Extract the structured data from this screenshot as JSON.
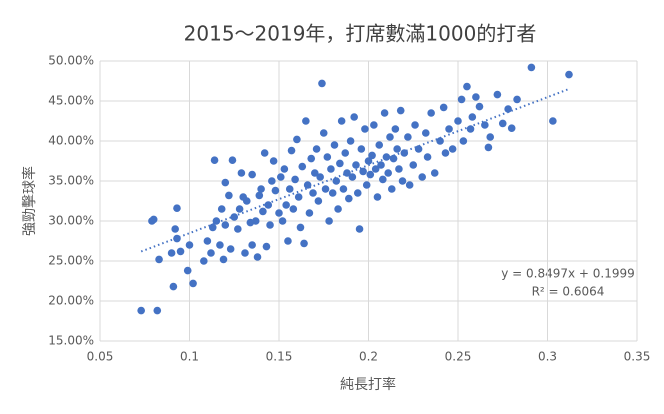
{
  "chart_data": {
    "type": "scatter",
    "title": "2015～2019年，打席數滿1000的打者",
    "x_label": "純長打率",
    "y_label": "強勁擊球率",
    "color": "#4472c4",
    "grid": true,
    "xlim": [
      0.05,
      0.35
    ],
    "xticks": [
      0.05,
      0.1,
      0.15,
      0.2,
      0.25,
      0.3,
      0.35
    ],
    "ylim": [
      15,
      50
    ],
    "yticks": [
      {
        "value": 15,
        "label": "15.00%"
      },
      {
        "value": 20,
        "label": "20.00%"
      },
      {
        "value": 25,
        "label": "25.00%"
      },
      {
        "value": 30,
        "label": "30.00%"
      },
      {
        "value": 35,
        "label": "35.00%"
      },
      {
        "value": 40,
        "label": "40.00%"
      },
      {
        "value": 45,
        "label": "45.00%"
      },
      {
        "value": 50,
        "label": "50.00%"
      }
    ],
    "trendline": {
      "x": [
        0.073,
        0.312
      ],
      "values": [
        26.19,
        46.5
      ],
      "color": "#4472c4"
    },
    "annotations": [
      "y = 0.8497x + 0.1999",
      "R² = 0.6064"
    ],
    "x": [
      0.073,
      0.082,
      0.079,
      0.08,
      0.083,
      0.09,
      0.091,
      0.092,
      0.093,
      0.093,
      0.095,
      0.099,
      0.1,
      0.102,
      0.108,
      0.11,
      0.112,
      0.113,
      0.114,
      0.115,
      0.117,
      0.118,
      0.119,
      0.12,
      0.12,
      0.122,
      0.123,
      0.124,
      0.125,
      0.127,
      0.128,
      0.129,
      0.13,
      0.131,
      0.132,
      0.134,
      0.135,
      0.135,
      0.137,
      0.138,
      0.139,
      0.14,
      0.141,
      0.142,
      0.143,
      0.144,
      0.145,
      0.146,
      0.147,
      0.148,
      0.15,
      0.151,
      0.152,
      0.153,
      0.154,
      0.155,
      0.156,
      0.157,
      0.158,
      0.159,
      0.16,
      0.161,
      0.162,
      0.163,
      0.164,
      0.165,
      0.166,
      0.167,
      0.168,
      0.169,
      0.17,
      0.171,
      0.172,
      0.173,
      0.174,
      0.175,
      0.176,
      0.177,
      0.178,
      0.179,
      0.18,
      0.181,
      0.182,
      0.183,
      0.184,
      0.185,
      0.186,
      0.187,
      0.188,
      0.189,
      0.19,
      0.191,
      0.192,
      0.193,
      0.194,
      0.195,
      0.196,
      0.197,
      0.198,
      0.199,
      0.2,
      0.201,
      0.202,
      0.203,
      0.204,
      0.205,
      0.206,
      0.207,
      0.208,
      0.209,
      0.21,
      0.211,
      0.212,
      0.213,
      0.214,
      0.215,
      0.216,
      0.217,
      0.218,
      0.219,
      0.22,
      0.222,
      0.223,
      0.225,
      0.226,
      0.228,
      0.23,
      0.232,
      0.233,
      0.235,
      0.237,
      0.24,
      0.242,
      0.243,
      0.245,
      0.247,
      0.25,
      0.252,
      0.253,
      0.255,
      0.257,
      0.258,
      0.26,
      0.262,
      0.265,
      0.267,
      0.268,
      0.272,
      0.275,
      0.278,
      0.28,
      0.283,
      0.291,
      0.303,
      0.312
    ],
    "values": [
      18.8,
      18.8,
      30,
      30.2,
      25.2,
      26,
      21.8,
      29,
      27.8,
      31.6,
      26.2,
      23.8,
      27,
      22.2,
      25,
      27.5,
      26,
      29.2,
      37.6,
      30,
      27,
      31.5,
      25.2,
      29.5,
      34.8,
      33.2,
      26.5,
      37.6,
      30.5,
      29,
      31.5,
      36,
      33,
      26,
      32.5,
      29.8,
      27,
      35.8,
      30,
      25.5,
      33.2,
      34,
      31.2,
      38.5,
      26.8,
      32,
      29.5,
      35,
      37.5,
      33.8,
      31,
      35.5,
      30,
      36.5,
      32,
      27.5,
      34,
      38.8,
      31.5,
      35.2,
      40.2,
      33,
      29.2,
      36.8,
      27.2,
      42.5,
      34.5,
      31,
      37.8,
      33.5,
      36,
      39,
      32.5,
      35.5,
      47.2,
      41,
      34,
      38,
      30,
      36.5,
      33.5,
      39.5,
      35,
      31.5,
      37.2,
      42.5,
      34,
      38.5,
      36,
      32.8,
      40,
      35.5,
      43,
      37,
      33.5,
      29,
      39,
      36.2,
      41.5,
      34.5,
      37.5,
      35.8,
      38.2,
      42,
      36.5,
      33,
      39.5,
      37,
      35.2,
      43.5,
      38,
      36,
      40.5,
      34,
      37.8,
      41.5,
      39,
      36.5,
      43.8,
      35,
      38.5,
      40.5,
      34.5,
      37,
      42,
      39,
      35.5,
      41,
      38,
      43.5,
      36,
      40,
      44.2,
      38.5,
      41.5,
      39,
      42.5,
      45.2,
      40,
      46.8,
      41.5,
      43,
      45.5,
      44.3,
      42,
      39.2,
      40.5,
      45.8,
      42.2,
      44,
      41.6,
      45.2,
      49.2,
      42.5,
      48.3
    ]
  }
}
